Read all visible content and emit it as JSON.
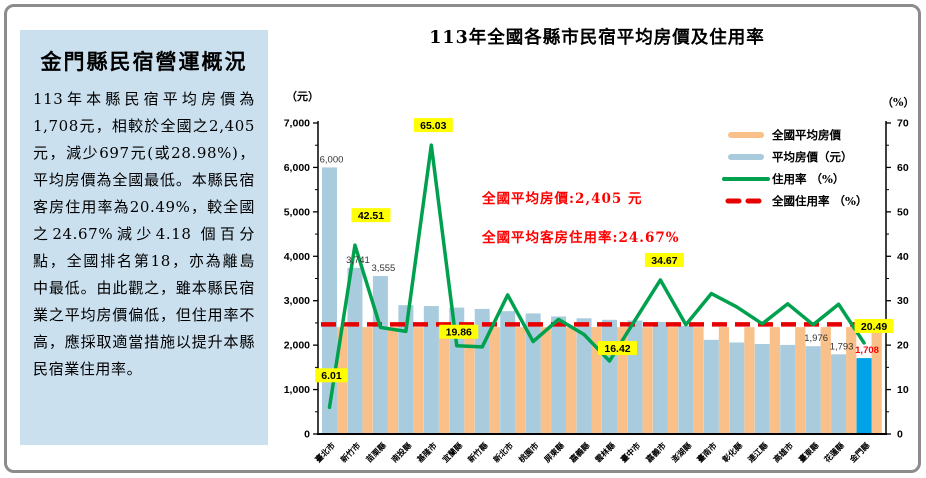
{
  "panel": {
    "title": "金門縣民宿營運概況",
    "body": "113年本縣民宿平均房價為1,708元，相較於全國之2,405元，減少697元(或28.98%)，平均房價為全國最低。本縣民宿客房住用率為20.49%，較全國之24.67%減少4.18 個百分點，全國排名第18，亦為離島中最低。由此觀之，雖本縣民宿業之平均房價偏低，但住用率不高，應採取適當措施以提升本縣民宿業住用率。"
  },
  "chart": {
    "title": "113年全國各縣市民宿平均房價及住用率",
    "left_axis_label": "（元）",
    "right_axis_label": "（%）",
    "annotations": [
      "全國平均房價:2,405 元",
      "全國平均客房住用率:24.67%"
    ],
    "legend": [
      {
        "label": "全國平均房價",
        "type": "bar",
        "color": "#F9C089"
      },
      {
        "label": "平均房價（元）",
        "type": "bar",
        "color": "#A8CCDD"
      },
      {
        "label": "住用率 （%）",
        "type": "line",
        "color": "#00A14E"
      },
      {
        "label": "全國住用率 （%）",
        "type": "dash",
        "color": "#E60000"
      }
    ],
    "colors": {
      "bar_national": "#F9C089",
      "bar_county": "#A8CCDD",
      "bar_highlight": "#00A2E8",
      "line_occupancy": "#00A14E",
      "line_national": "#E60000",
      "label_bg": "#FFFF00",
      "annotation": "#FF0000",
      "bar_label": "#333333"
    }
  },
  "chart_data": {
    "type": "bar",
    "categories": [
      "臺北市",
      "新竹市",
      "苗栗縣",
      "南投縣",
      "基隆市",
      "宜蘭縣",
      "新竹縣",
      "新北市",
      "桃園市",
      "屏東縣",
      "嘉義縣",
      "雲林縣",
      "臺中市",
      "嘉義市",
      "澎湖縣",
      "臺南市",
      "彰化縣",
      "連江縣",
      "高雄市",
      "臺東縣",
      "花蓮縣",
      "金門縣"
    ],
    "series": [
      {
        "name": "平均房價（元）",
        "type": "bar",
        "axis": "left",
        "values": [
          6000,
          3741,
          3555,
          2900,
          2880,
          2845,
          2815,
          2765,
          2715,
          2645,
          2605,
          2570,
          2555,
          2520,
          2430,
          2120,
          2060,
          2025,
          2005,
          1976,
          1793,
          1708
        ],
        "labels": {
          "0": "6,000",
          "1": "3,741",
          "2": "3,555",
          "19": "1,976",
          "20": "1,793",
          "21": "1,708"
        }
      },
      {
        "name": "全國平均房價",
        "type": "bar",
        "axis": "left",
        "value_constant": 2405
      },
      {
        "name": "住用率（%）",
        "type": "line",
        "axis": "right",
        "values": [
          6.01,
          42.51,
          24.0,
          23.1,
          65.03,
          19.86,
          19.6,
          31.3,
          20.8,
          25.8,
          22.4,
          16.42,
          25.6,
          34.67,
          24.6,
          31.6,
          28.6,
          24.8,
          29.3,
          24.6,
          29.2,
          20.49
        ],
        "labels": {
          "0": "6.01",
          "1": "42.51",
          "4": "65.03",
          "5": "19.86",
          "11": "16.42",
          "13": "34.67",
          "21": "20.49"
        }
      },
      {
        "name": "全國住用率（%）",
        "type": "dashline",
        "axis": "right",
        "value_constant": 24.67
      }
    ],
    "left_axis": {
      "min": 0,
      "max": 7000,
      "step": 1000,
      "tick_labels": [
        "0",
        "1,000",
        "2,000",
        "3,000",
        "4,000",
        "5,000",
        "6,000",
        "7,000"
      ]
    },
    "right_axis": {
      "min": 0,
      "max": 70,
      "step": 10,
      "tick_labels": [
        "0",
        "10",
        "20",
        "30",
        "40",
        "50",
        "60",
        "70"
      ]
    },
    "highlight_category": "金門縣",
    "title": "113年全國各縣市民宿平均房價及住用率",
    "xlabel": "",
    "ylabel_left": "（元）",
    "ylabel_right": "（%）"
  }
}
